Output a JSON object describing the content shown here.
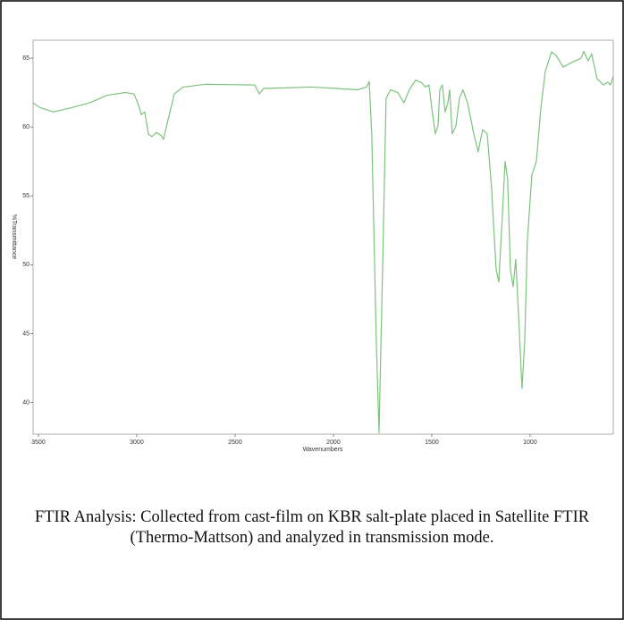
{
  "chart_data": {
    "type": "line",
    "xlabel": "Wavenumbers",
    "ylabel": "%Transmittance",
    "caption": "FTIR Analysis: Collected from cast-film on KBR salt-plate placed in Satellite FTIR (Thermo-Mattson) and analyzed in transmission mode.",
    "x": [
      3527,
      3491,
      3423,
      3332,
      3241,
      3150,
      3059,
      3014,
      2991,
      2977,
      2959,
      2941,
      2923,
      2900,
      2877,
      2864,
      2841,
      2809,
      2764,
      2650,
      2400,
      2377,
      2355,
      2105,
      1877,
      1832,
      1818,
      1805,
      1782,
      1768,
      1750,
      1732,
      1709,
      1673,
      1641,
      1614,
      1582,
      1550,
      1532,
      1514,
      1500,
      1482,
      1468,
      1459,
      1446,
      1432,
      1418,
      1409,
      1396,
      1377,
      1359,
      1341,
      1318,
      1286,
      1264,
      1241,
      1218,
      1196,
      1173,
      1159,
      1141,
      1127,
      1114,
      1100,
      1086,
      1073,
      1059,
      1041,
      1027,
      1014,
      991,
      968,
      945,
      923,
      891,
      868,
      832,
      786,
      741,
      727,
      705,
      687,
      659,
      627,
      605,
      591,
      577
    ],
    "series": [
      {
        "color": "#7cc27c",
        "values": [
          61.75,
          61.4,
          61.1,
          61.4,
          61.75,
          62.3,
          62.5,
          62.4,
          61.6,
          60.9,
          61.1,
          59.5,
          59.3,
          59.6,
          59.4,
          59.1,
          60.5,
          62.4,
          62.9,
          63.1,
          63.05,
          62.4,
          62.8,
          62.9,
          62.7,
          62.9,
          63.3,
          59.5,
          44.5,
          37.8,
          49.7,
          62.1,
          62.7,
          62.5,
          61.75,
          62.7,
          63.4,
          63.2,
          62.9,
          63.05,
          61.4,
          59.5,
          60.1,
          62.7,
          63.05,
          61.1,
          61.75,
          62.7,
          59.5,
          60.1,
          62.1,
          62.7,
          61.75,
          59.5,
          58.2,
          59.8,
          59.5,
          55.6,
          49.7,
          48.75,
          53.6,
          57.5,
          56.2,
          49.7,
          48.4,
          50.4,
          46.5,
          41.0,
          44.5,
          51.7,
          56.5,
          57.5,
          61.4,
          64.0,
          65.45,
          65.2,
          64.35,
          64.7,
          65.0,
          65.5,
          64.8,
          65.3,
          63.5,
          63.05,
          63.25,
          63.05,
          63.7
        ]
      }
    ],
    "xlim": [
      3527,
      577
    ],
    "ylim": [
      37.7,
      66.3
    ],
    "xticks": [
      3500,
      3000,
      2500,
      2000,
      1500,
      1000
    ],
    "yticks": [
      40,
      45,
      50,
      55,
      60,
      65
    ]
  }
}
